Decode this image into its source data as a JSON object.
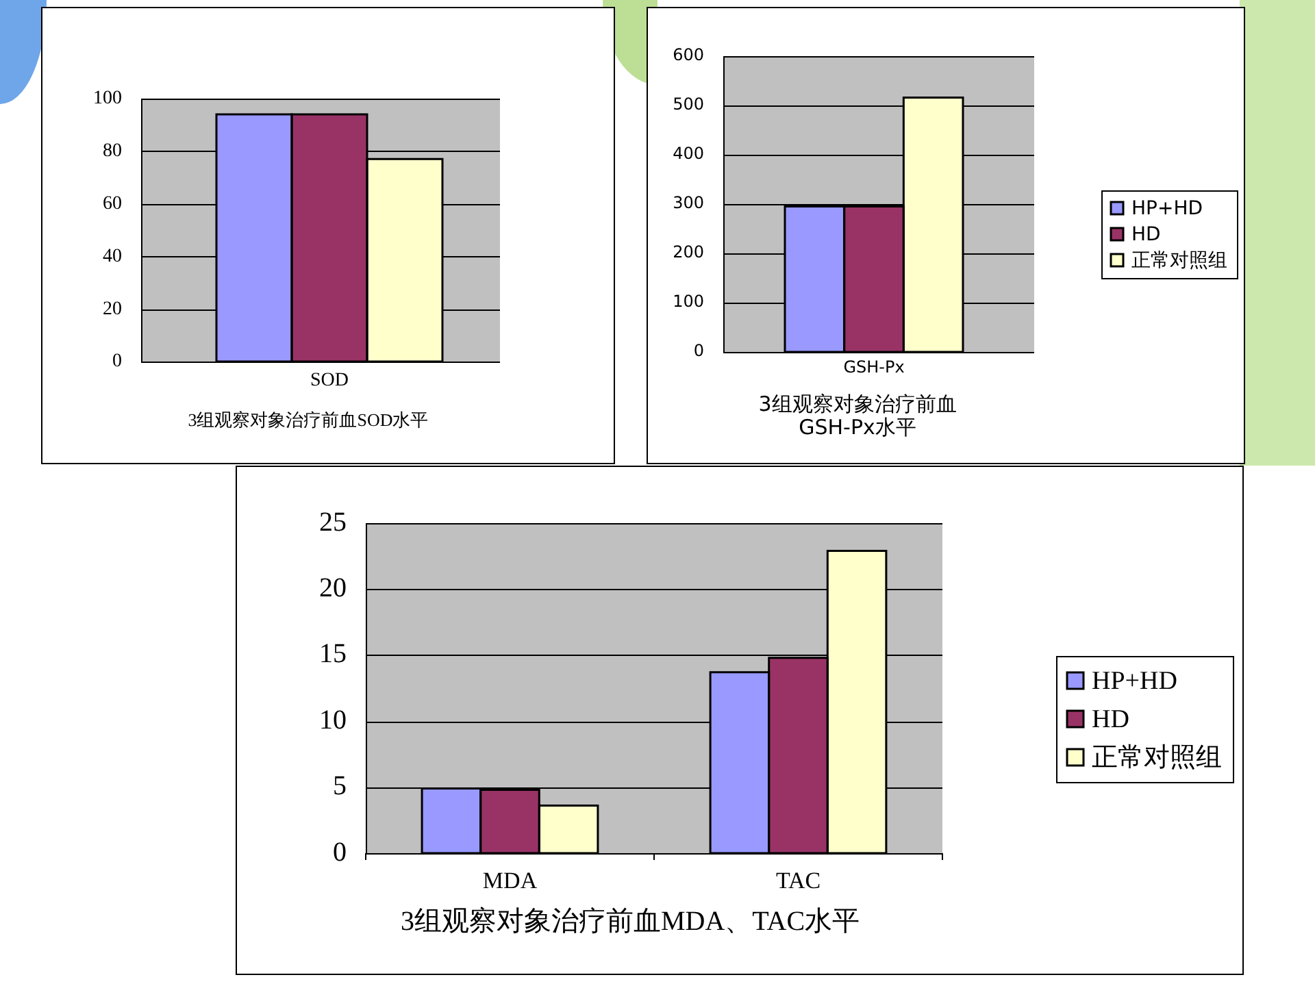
{
  "chart_data": [
    {
      "type": "bar",
      "title": "3组观察对象治疗前血SOD水平",
      "xlabel": "SOD",
      "categories": [
        null,
        null,
        null
      ],
      "series": [
        {
          "colors": [
            "#9999ff",
            "#993366",
            "#ffffcc"
          ],
          "values": [
            94,
            94,
            77
          ]
        }
      ],
      "ylim": [
        0,
        100
      ],
      "yticks": [
        0,
        20,
        40,
        60,
        80,
        100
      ],
      "grid": "y"
    },
    {
      "type": "bar",
      "title": "3组观察对象治疗前血GSH-Px水平",
      "xlabel": "GSH-Px",
      "categories": [
        null,
        null,
        null
      ],
      "series": [
        {
          "name": "HP+HD",
          "color": "#9999ff",
          "values": [
            295,
            null,
            null
          ]
        },
        {
          "name": "HD",
          "color": "#993366",
          "values": [
            null,
            295,
            null
          ]
        },
        {
          "name": "正常对照组",
          "color": "#ffffcc",
          "values": [
            null,
            null,
            516
          ]
        }
      ],
      "ylim": [
        0,
        600
      ],
      "yticks": [
        0,
        100,
        200,
        300,
        400,
        500,
        600
      ],
      "grid": "y",
      "legend": "right"
    },
    {
      "type": "bar",
      "title": "3组观察对象治疗前血MDA、TAC水平",
      "categories": [
        "MDA",
        "TAC"
      ],
      "series": [
        {
          "name": "HP+HD",
          "color": "#9999ff",
          "values": [
            4.9,
            13.7
          ]
        },
        {
          "name": "HD",
          "color": "#993366",
          "values": [
            4.8,
            14.8
          ]
        },
        {
          "name": "正常对照组",
          "color": "#ffffcc",
          "values": [
            3.6,
            22.9
          ]
        }
      ],
      "ylim": [
        0,
        25
      ],
      "yticks": [
        0,
        5,
        10,
        15,
        20,
        25
      ],
      "grid": "y",
      "legend": "right"
    }
  ]
}
